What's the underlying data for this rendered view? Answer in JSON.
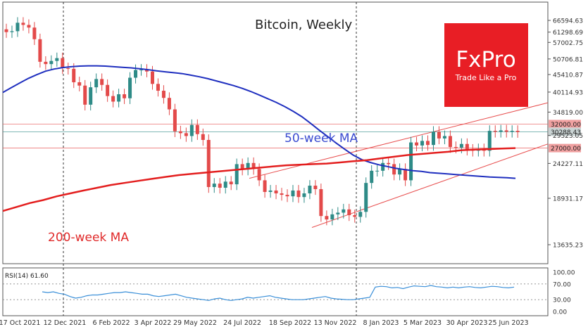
{
  "chart_data": {
    "type": "candlestick",
    "title": "Bitcoin, Weekly",
    "y_ticks": [
      "66594.63",
      "61298.69",
      "57002.75",
      "50706.81",
      "45410.87",
      "40114.93",
      "34819.00",
      "29523.05",
      "24227.11",
      "18931.17",
      "13635.23"
    ],
    "y_tick_values": [
      66594.63,
      61298.69,
      57002.75,
      50706.81,
      45410.87,
      40114.93,
      34819.0,
      29523.05,
      24227.11,
      18931.17,
      13635.23
    ],
    "x_ticks": [
      "17 Oct 2021",
      "12 Dec 2021",
      "6 Feb 2022",
      "3 Apr 2022",
      "29 May 2022",
      "24 Jul 2022",
      "18 Sep 2022",
      "13 Nov 2022",
      "8 Jan 2023",
      "5 Mar 2023",
      "30 Apr 2023",
      "25 Jun 2023"
    ],
    "ylim": [
      11000,
      70000
    ],
    "weeks": 92,
    "closes": [
      61300,
      61700,
      65500,
      64500,
      63300,
      58300,
      49700,
      48900,
      50000,
      51000,
      47500,
      47300,
      43000,
      42000,
      36700,
      41500,
      44000,
      42200,
      39000,
      37500,
      39500,
      38400,
      44400,
      46900,
      47000,
      46400,
      42500,
      40500,
      38500,
      35500,
      30400,
      30000,
      29400,
      31800,
      29800,
      28600,
      20500,
      21000,
      20400,
      21300,
      20900,
      24100,
      23200,
      24300,
      23300,
      21500,
      19800,
      20000,
      19600,
      19400,
      19200,
      20000,
      19100,
      19600,
      20700,
      20200,
      16700,
      16300,
      16900,
      17100,
      17500,
      16800,
      16600,
      17200,
      21100,
      23000,
      23000,
      24300,
      24100,
      22400,
      23300,
      21500,
      28100,
      27500,
      28400,
      27600,
      30300,
      28900,
      29400,
      27200,
      27100,
      27800,
      26700,
      26500,
      26800,
      26500,
      30500,
      30300,
      30600,
      30300,
      30500,
      30250
    ],
    "sma50": [
      40000,
      41400,
      42800,
      44200,
      45400,
      46500,
      47200,
      47700,
      48000,
      48200,
      48300,
      48300,
      48200,
      48000,
      47800,
      47600,
      47300,
      47000,
      46600,
      46300,
      46000,
      45700,
      45200,
      44700,
      44100,
      43400,
      42700,
      42000,
      41200,
      40300,
      39300,
      38300,
      37300,
      36200,
      35000,
      33700,
      32200,
      30700,
      29300,
      28000,
      26800,
      25700,
      24900,
      24400,
      24000,
      23700,
      23400,
      23200,
      23000,
      22900,
      22700,
      22600,
      22500,
      22400,
      22300,
      22200,
      22100,
      22000,
      21950,
      21900,
      21800
    ],
    "sma50_start_week": 0,
    "sma200": [
      17300,
      17800,
      18300,
      18700,
      19200,
      19600,
      20000,
      20400,
      20800,
      21100,
      21400,
      21700,
      22000,
      22300,
      22500,
      22700,
      22900,
      23100,
      23300,
      23500,
      23700,
      23900,
      24000,
      24100,
      24200,
      24400,
      24600,
      24800,
      25100,
      25400,
      25700,
      25900,
      26100,
      26300,
      26600,
      26700,
      26800,
      26900,
      27000
    ],
    "rsi_label": "RSI(14) 61.60",
    "rsi_ticks": [
      "100.00",
      "70.00",
      "30.00",
      "0.00"
    ],
    "rsi": [
      50,
      48,
      50,
      46,
      44,
      38,
      34,
      36,
      40,
      42,
      42,
      44,
      46,
      48,
      48,
      50,
      48,
      46,
      44,
      44,
      40,
      38,
      40,
      42,
      44,
      40,
      36,
      34,
      32,
      30,
      28,
      32,
      34,
      30,
      28,
      30,
      32,
      36,
      34,
      36,
      38,
      40,
      36,
      34,
      32,
      30,
      30,
      30,
      32,
      34,
      36,
      38,
      34,
      32,
      31,
      30,
      30,
      32,
      34,
      36,
      62,
      64,
      63,
      60,
      61,
      58,
      62,
      65,
      64,
      63,
      66,
      63,
      62,
      60,
      62,
      60,
      62,
      63,
      61,
      60,
      62,
      64,
      63,
      61,
      60,
      62
    ]
  },
  "annotations": {
    "ma50_label": "50-week MA",
    "ma200_label": "200-week MA",
    "price_tags": [
      {
        "text": "32000.00",
        "value": 32000
      },
      {
        "text": "30288.43",
        "value": 30288.43
      },
      {
        "text": "27000.00",
        "value": 27000
      }
    ]
  },
  "logo": {
    "brand": "FxPro",
    "tagline": "Trade Like a Pro"
  },
  "colors": {
    "up": "#2e8b87",
    "down": "#e34a4a",
    "sma50": "#1f2fbf",
    "sma200": "#e31e1e",
    "channel": "#e85050",
    "rsi": "#3a8fd8",
    "logo_bg": "#e81e25"
  }
}
